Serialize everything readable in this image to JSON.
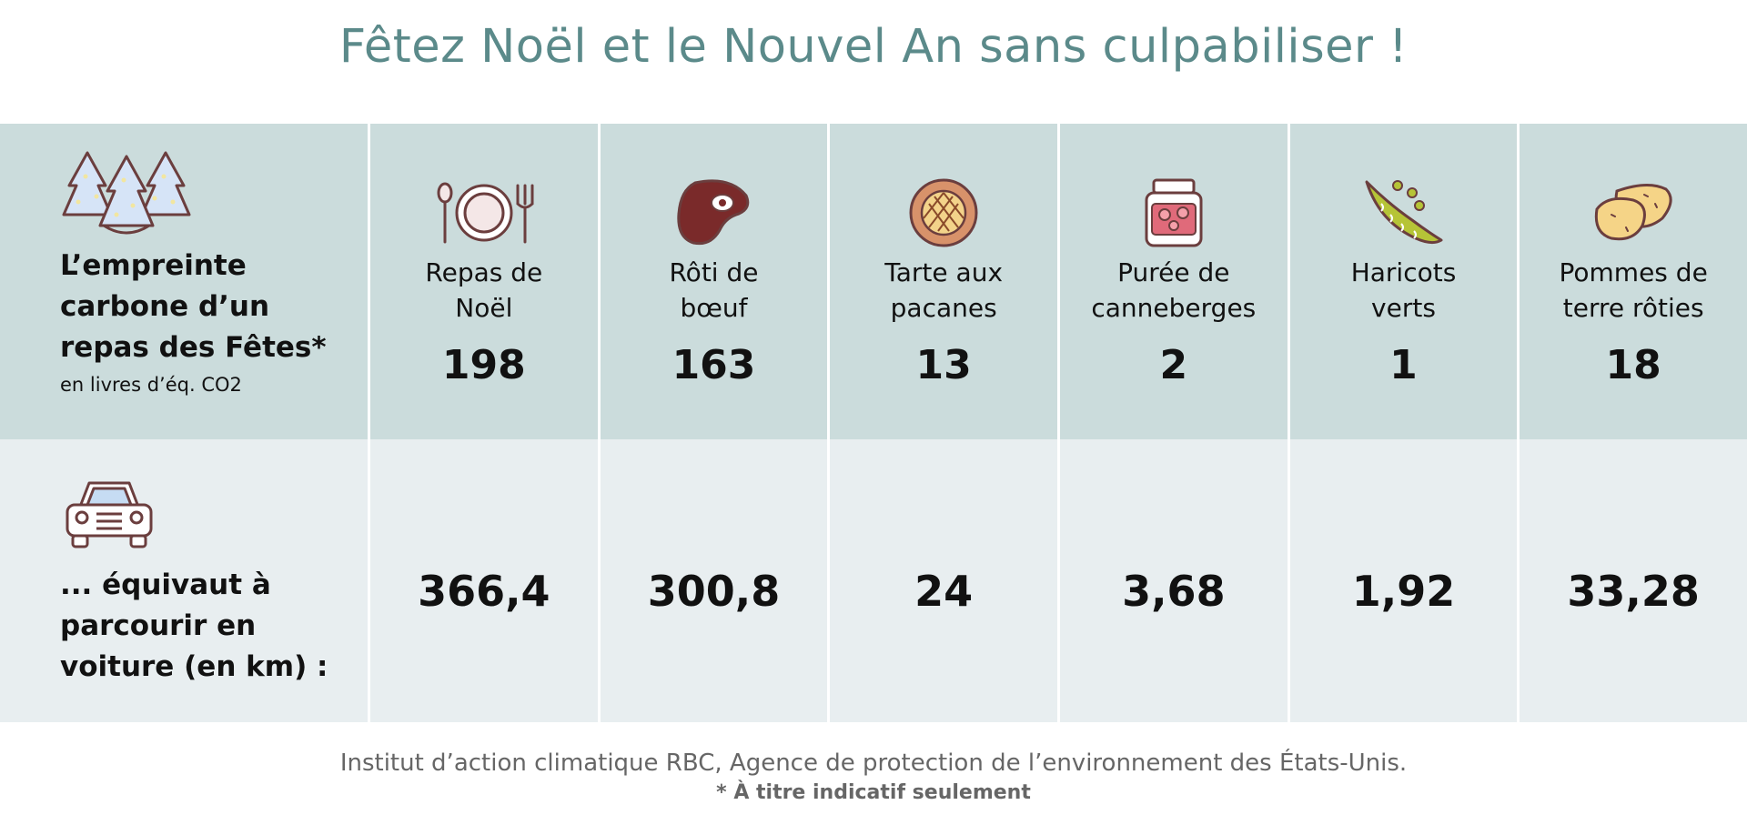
{
  "title": "Fêtez Noël et le Nouvel An sans culpabiliser !",
  "colors": {
    "title": "#5b8a8a",
    "top_row": "#cbdcdc",
    "bottom_row": "#e8eef0",
    "icon_stroke": "#6b3e3e"
  },
  "row_labels": {
    "top_heading": [
      "L’empreinte",
      "carbone d’un",
      "repas des Fêtes*"
    ],
    "top_unit": "en livres d’éq. CO2",
    "bottom_heading": [
      "... équivaut à",
      "parcourir en",
      "voiture (en km) :"
    ]
  },
  "items": [
    {
      "icon": "plate-cutlery-icon",
      "name": [
        "Repas de",
        "Noël"
      ],
      "co2": "198",
      "km": "366,4"
    },
    {
      "icon": "steak-icon",
      "name": [
        "Rôti de",
        "bœuf"
      ],
      "co2": "163",
      "km": "300,8"
    },
    {
      "icon": "pie-icon",
      "name": [
        "Tarte aux",
        "pacanes"
      ],
      "co2": "13",
      "km": "24"
    },
    {
      "icon": "jam-jar-icon",
      "name": [
        "Purée de",
        "canneberges"
      ],
      "co2": "2",
      "km": "3,68"
    },
    {
      "icon": "pea-pod-icon",
      "name": [
        "Haricots",
        "verts"
      ],
      "co2": "1",
      "km": "1,92"
    },
    {
      "icon": "potato-icon",
      "name": [
        "Pommes de",
        "terre rôties"
      ],
      "co2": "18",
      "km": "33,28"
    }
  ],
  "footer": {
    "source": "Institut d’action climatique RBC, Agence de protection de l’environnement des États-Unis.",
    "note": "* À titre indicatif seulement"
  }
}
